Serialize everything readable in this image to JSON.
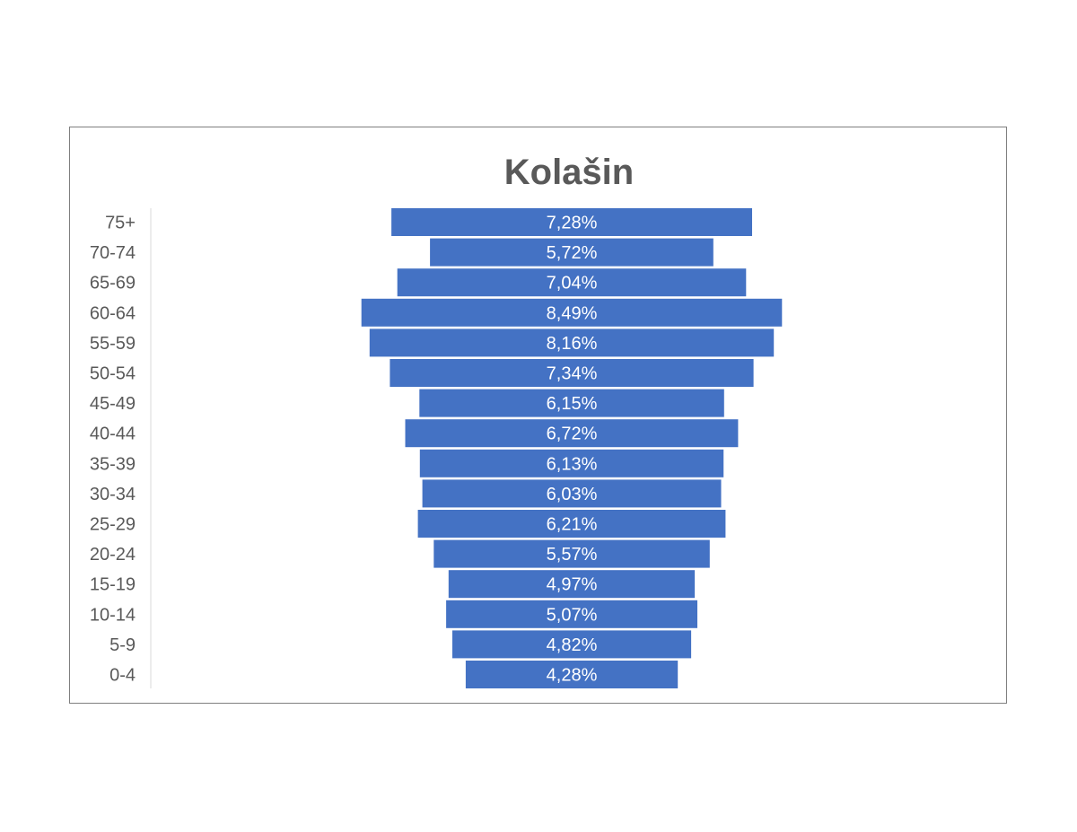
{
  "chart_data": {
    "type": "bar",
    "orientation": "horizontal",
    "layout": "centered-population-pyramid",
    "title": "Kolašin",
    "categories": [
      "75+",
      "70-74",
      "65-69",
      "60-64",
      "55-59",
      "50-54",
      "45-49",
      "40-44",
      "35-39",
      "30-34",
      "25-29",
      "20-24",
      "15-19",
      "10-14",
      "5-9",
      "0-4"
    ],
    "values": [
      7.28,
      5.72,
      7.04,
      8.49,
      8.16,
      7.34,
      6.15,
      6.72,
      6.13,
      6.03,
      6.21,
      5.57,
      4.97,
      5.07,
      4.82,
      4.28
    ],
    "value_labels": [
      "7,28%",
      "5,72%",
      "7,04%",
      "8,49%",
      "8,16%",
      "7,34%",
      "6,15%",
      "6,72%",
      "6,13%",
      "6,03%",
      "6,21%",
      "5,57%",
      "4,97%",
      "5,07%",
      "4,82%",
      "4,28%"
    ],
    "unit": "%",
    "grid": false,
    "legend": "none",
    "colors": {
      "bar": "#4472c4",
      "label_text": "#ffffff",
      "axis_text": "#595959",
      "title_text": "#595959",
      "frame": "#7f7f7f",
      "axis_line": "#d9d9d9"
    }
  }
}
